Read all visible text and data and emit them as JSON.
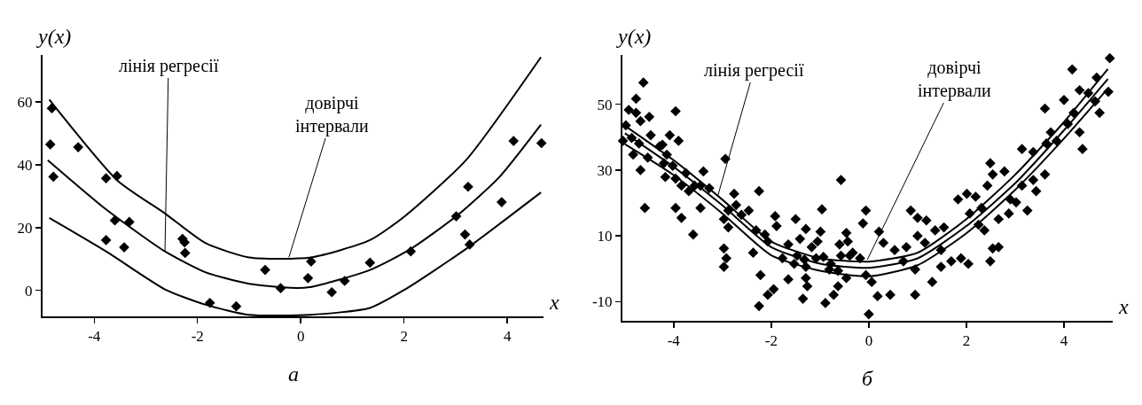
{
  "chart_data": [
    {
      "type": "scatter",
      "xlabel": "x",
      "ylabel": "y(x)",
      "xlim": [
        -5,
        4.7
      ],
      "ylim": [
        -8.3,
        75
      ],
      "xticks": [
        -4,
        -2,
        0,
        2,
        4
      ],
      "yticks": [
        0,
        20,
        40,
        60
      ],
      "grid": false,
      "annotations": [
        {
          "text": "лінія регресії",
          "x": -2.63,
          "y": 12.4
        },
        {
          "text": "довірчі\nінтервали",
          "x": -0.23,
          "y": 10.5
        },
        "а"
      ],
      "series": [
        {
          "marker": "diamond",
          "color": "#000000",
          "x": [
            -4.82,
            -4.85,
            -4.79,
            -4.31,
            -3.77,
            -3.56,
            -3.6,
            -3.32,
            -3.77,
            -3.42,
            -2.29,
            -2.25,
            -2.24,
            -1.76,
            -1.25,
            -0.69,
            -0.39,
            0.2,
            0.14,
            0.6,
            0.85,
            1.34,
            2.13,
            3.01,
            3.24,
            3.18,
            3.27,
            3.89,
            4.12,
            4.66
          ],
          "values": [
            58,
            46.5,
            36.2,
            45.6,
            35.7,
            36.4,
            22.3,
            21.8,
            16,
            13.7,
            16.4,
            15.3,
            11.9,
            -4,
            -5.1,
            6.5,
            0.7,
            9.2,
            3.9,
            -0.6,
            3,
            8.8,
            12.4,
            23.6,
            33,
            17.8,
            14.6,
            28.1,
            47.6,
            46.9
          ]
        },
        {
          "type": "line",
          "color": "#000000",
          "x": [
            -4.9,
            -3.77,
            -2.63,
            -1.84,
            -1.0,
            -0.2,
            0.18,
            1.34,
            2.13,
            3.04,
            3.84,
            4.65
          ],
          "values": [
            41.5,
            25.8,
            12.4,
            5.7,
            2.1,
            0.8,
            1,
            6.5,
            13.2,
            24,
            36,
            52.8
          ]
        },
        {
          "type": "line",
          "color": "#000000",
          "x": [
            -4.87,
            -3.55,
            -2.63,
            -1.84,
            -1.0,
            0.2,
            1.34,
            2.02,
            3.2,
            4.65
          ],
          "values": [
            60.8,
            35,
            24.5,
            15,
            10.5,
            10.5,
            16,
            23.7,
            41.5,
            74.3
          ]
        },
        {
          "type": "line",
          "color": "#000000",
          "x": [
            -4.87,
            -3.77,
            -2.63,
            -1.84,
            -1.0,
            0.18,
            1.34,
            2.02,
            3.2,
            4.65
          ],
          "values": [
            23.1,
            12.4,
            0.3,
            -4.6,
            -7.8,
            -7.8,
            -5.6,
            0.3,
            13.2,
            31.2
          ]
        }
      ]
    },
    {
      "type": "scatter",
      "xlabel": "x",
      "ylabel": "y(x)",
      "xlim": [
        -5.05,
        5
      ],
      "ylim": [
        -15.8,
        65
      ],
      "xticks": [
        -4,
        -2,
        0,
        2,
        4
      ],
      "yticks": [
        -10,
        10,
        30,
        50
      ],
      "grid": false,
      "annotations": [
        {
          "text": "лінія регресії",
          "x": -3.1,
          "y": 21.9
        },
        {
          "text": "довірчі\nінтервали",
          "x": -0.03,
          "y": 2.8
        },
        "б"
      ],
      "series": [
        {
          "marker": "diamond",
          "color": "#000000",
          "x": [
            -4.62,
            -4.77,
            -4.98,
            -4.92,
            -4.77,
            -4.5,
            -4.68,
            -5.04,
            -4.86,
            -4.71,
            -4.47,
            -4.83,
            -4.68,
            -4.59,
            -4.53,
            -4.29,
            -4.23,
            -3.96,
            -4.08,
            -3.9,
            -4.14,
            -4.2,
            -4.02,
            -4.17,
            -3.96,
            -3.75,
            -3.84,
            -3.69,
            -3.57,
            -3.39,
            -3.45,
            -3.27,
            -3.45,
            -3.96,
            -3.84,
            -3.6,
            -2.94,
            -2.76,
            -2.88,
            -2.72,
            -2.46,
            -2.61,
            -2.97,
            -2.88,
            -2.97,
            -2.92,
            -2.97,
            -2.25,
            -2.31,
            -2.13,
            -2.07,
            -1.92,
            -1.89,
            -2.37,
            -2.22,
            -2.25,
            -2.07,
            -1.95,
            -1.65,
            -1.65,
            -1.5,
            -1.41,
            -1.29,
            -1.47,
            -1.32,
            -1.17,
            -1.08,
            -0.96,
            -0.99,
            -1.05,
            -0.93,
            -1.35,
            -1.26,
            -1.29,
            -0.89,
            -0.72,
            -0.63,
            -0.57,
            -0.46,
            -0.43,
            -0.6,
            -0.57,
            -0.39,
            -0.78,
            -0.63,
            -0.46,
            -0.81,
            -1.77,
            -1.53,
            -1.29,
            0,
            -0.06,
            -0.12,
            0.21,
            0.3,
            -0.33,
            -0.18,
            -0.06,
            0.06,
            0.18,
            0.44,
            0.95,
            0.53,
            0.77,
            0.71,
            0.86,
            1.0,
            1.18,
            1.0,
            1.15,
            0.95,
            1.3,
            1.36,
            1.54,
            1.48,
            1.69,
            1.48,
            1.89,
            2.04,
            2.49,
            2.66,
            2.54,
            1.83,
            2.01,
            2.19,
            2.07,
            2.31,
            2.43,
            2.49,
            2.54,
            2.78,
            2.25,
            2.37,
            2.66,
            2.87,
            3.02,
            3.25,
            3.14,
            3.14,
            2.9,
            3.37,
            3.43,
            3.61,
            3.64,
            3.73,
            3.61,
            4.0,
            4.08,
            3.85,
            4.2,
            4.32,
            4.38,
            4.17,
            4.32,
            4.5,
            4.67,
            4.64,
            4.73,
            4.94,
            4.91,
            3.37
          ],
          "values": [
            56.6,
            51.7,
            43.6,
            48.3,
            47.4,
            46.2,
            44.9,
            38.9,
            39.8,
            38.1,
            40.6,
            34.7,
            30,
            18.5,
            33.8,
            37.2,
            37.7,
            47.9,
            40.6,
            38.9,
            34.7,
            32.1,
            31.3,
            27.9,
            27.4,
            29.1,
            25.3,
            23.6,
            25.3,
            29.6,
            25.3,
            24.5,
            18.5,
            18.5,
            15.5,
            10.4,
            33.4,
            22.8,
            17.7,
            19.4,
            17.7,
            16.4,
            15.1,
            12.6,
            6.2,
            3.2,
            0.6,
            23.6,
            11.7,
            10.4,
            8.3,
            16,
            13,
            4.9,
            -1.9,
            -11.3,
            -7.9,
            -6.2,
            -3.2,
            7.4,
            15.1,
            9.1,
            12.1,
            4,
            2.8,
            6.6,
            3.2,
            18.1,
            11.3,
            8.3,
            3.6,
            -9.1,
            -5.3,
            -2.8,
            -10.4,
            -7.9,
            -5.3,
            27,
            10.9,
            8.3,
            7.4,
            4,
            4,
            1.5,
            -0.6,
            -2.8,
            -0.2,
            3.2,
            1.5,
            0.6,
            -13.8,
            17.7,
            13.8,
            11.3,
            7.9,
            4.9,
            3.2,
            -1.9,
            -4,
            -8.3,
            -7.9,
            -7.9,
            5.7,
            6.6,
            2.3,
            17.7,
            15.5,
            14.7,
            10,
            7.9,
            -0.2,
            -4,
            11.7,
            12.6,
            5.7,
            2.3,
            0.6,
            3.2,
            1.5,
            2.3,
            6.6,
            6.2,
            21.1,
            22.8,
            21.9,
            16.8,
            18.5,
            25.3,
            32.1,
            28.7,
            29.6,
            13.4,
            11.7,
            15.1,
            16.8,
            20.2,
            17.7,
            25.3,
            36.4,
            21.1,
            27,
            23.6,
            28.7,
            38.1,
            41.5,
            48.7,
            51.3,
            44,
            38.9,
            47.4,
            41.5,
            36.4,
            60.6,
            54.3,
            53.4,
            58.1,
            50.9,
            47.4,
            64,
            53.8,
            35.5
          ]
        },
        {
          "type": "line",
          "color": "#000000",
          "x": [
            -5,
            -4,
            -3,
            -2,
            -1,
            0,
            1,
            2,
            3,
            4,
            4.9
          ],
          "values": [
            41.2,
            31,
            19.3,
            6.6,
            1.6,
            0.3,
            3.2,
            13,
            26,
            42.1,
            57.7
          ]
        },
        {
          "type": "line",
          "color": "#000000",
          "x": [
            -5,
            -4,
            -3,
            -2,
            -1,
            0,
            1,
            2,
            3,
            4,
            4.9
          ],
          "values": [
            43.5,
            33,
            21,
            8.3,
            3.2,
            2.2,
            4.9,
            15.1,
            28.6,
            44.6,
            60.7
          ]
        },
        {
          "type": "line",
          "color": "#000000",
          "x": [
            -5,
            -4,
            -3,
            -2,
            -1,
            0,
            1,
            2,
            3,
            4,
            4.9
          ],
          "values": [
            37.9,
            28.5,
            16.8,
            4.1,
            -0.6,
            -2.3,
            1.1,
            10.8,
            24,
            39.6,
            54.8
          ]
        }
      ]
    }
  ]
}
